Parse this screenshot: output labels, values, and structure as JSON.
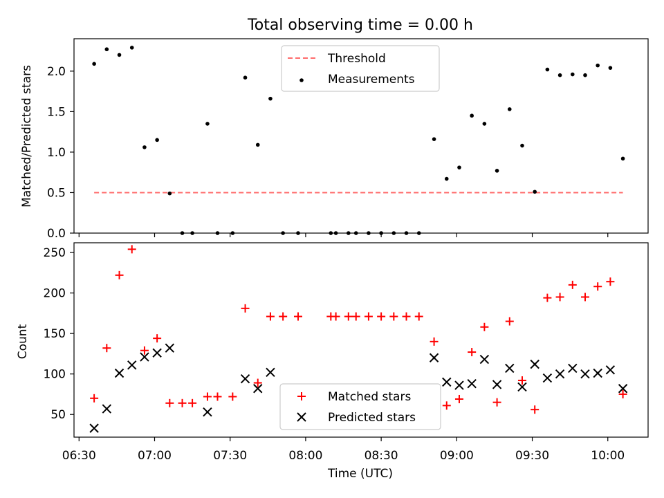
{
  "figure_title": "Total observing time = 0.00 h",
  "colors": {
    "threshold": "#ff6b6b",
    "measurements": "#000000",
    "matched": "#ff0000",
    "predicted": "#000000"
  },
  "chart_data": [
    {
      "type": "scatter",
      "title": "Total observing time = 0.00 h",
      "xlabel": "",
      "ylabel": "Matched/Predicted stars",
      "ylim": [
        0,
        2.4
      ],
      "yticks": [
        0.0,
        0.5,
        1.0,
        1.5,
        2.0
      ],
      "ytick_labels": [
        "0.0",
        "0.5",
        "1.0",
        "1.5",
        "2.0"
      ],
      "xlim": [
        "06:28",
        "10:16"
      ],
      "legend_position": "top-center",
      "threshold": {
        "name": "Threshold",
        "value": 0.5,
        "x_range": [
          "06:36",
          "10:06"
        ],
        "style": "dashed"
      },
      "series": [
        {
          "name": "Measurements",
          "x": [
            "06:36",
            "06:41",
            "06:46",
            "06:51",
            "06:56",
            "07:01",
            "07:06",
            "07:11",
            "07:15",
            "07:21",
            "07:25",
            "07:31",
            "07:36",
            "07:41",
            "07:46",
            "07:51",
            "07:57",
            "08:10",
            "08:12",
            "08:17",
            "08:20",
            "08:25",
            "08:30",
            "08:35",
            "08:40",
            "08:45",
            "08:51",
            "08:56",
            "09:01",
            "09:06",
            "09:11",
            "09:16",
            "09:21",
            "09:26",
            "09:31",
            "09:36",
            "09:41",
            "09:46",
            "09:51",
            "09:56",
            "10:01",
            "10:06"
          ],
          "y": [
            2.09,
            2.27,
            2.2,
            2.29,
            1.06,
            1.15,
            0.49,
            0.0,
            0.0,
            1.35,
            0.0,
            0.0,
            1.92,
            1.09,
            1.66,
            0.0,
            0.0,
            0.0,
            0.0,
            0.0,
            0.0,
            0.0,
            0.0,
            0.0,
            0.0,
            0.0,
            1.16,
            0.67,
            0.81,
            1.45,
            1.35,
            0.77,
            1.53,
            1.08,
            0.51,
            2.02,
            1.95,
            1.96,
            1.95,
            2.07,
            2.04,
            0.92
          ]
        }
      ]
    },
    {
      "type": "scatter",
      "title": "",
      "xlabel": "Time (UTC)",
      "ylabel": "Count",
      "ylim": [
        22,
        262
      ],
      "yticks": [
        50,
        100,
        150,
        200,
        250
      ],
      "xlim": [
        "06:28",
        "10:16"
      ],
      "xticks": [
        "06:30",
        "07:00",
        "07:30",
        "08:00",
        "08:30",
        "09:00",
        "09:30",
        "10:00"
      ],
      "legend_position": "bottom-center",
      "series": [
        {
          "name": "Matched stars",
          "marker": "plus",
          "x": [
            "06:36",
            "06:41",
            "06:46",
            "06:51",
            "06:56",
            "07:01",
            "07:06",
            "07:11",
            "07:15",
            "07:21",
            "07:25",
            "07:31",
            "07:36",
            "07:41",
            "07:46",
            "07:51",
            "07:57",
            "08:10",
            "08:12",
            "08:17",
            "08:20",
            "08:25",
            "08:30",
            "08:35",
            "08:40",
            "08:45",
            "08:51",
            "08:56",
            "09:01",
            "09:06",
            "09:11",
            "09:16",
            "09:21",
            "09:26",
            "09:31",
            "09:36",
            "09:41",
            "09:46",
            "09:51",
            "09:56",
            "10:01",
            "10:06"
          ],
          "y": [
            70,
            132,
            222,
            254,
            129,
            144,
            64,
            64,
            64,
            72,
            72,
            72,
            181,
            89,
            171,
            171,
            171,
            171,
            171,
            171,
            171,
            171,
            171,
            171,
            171,
            171,
            140,
            61,
            69,
            127,
            158,
            65,
            165,
            92,
            56,
            194,
            195,
            210,
            195,
            208,
            214,
            75
          ]
        },
        {
          "name": "Predicted stars",
          "marker": "x",
          "x": [
            "06:36",
            "06:41",
            "06:46",
            "06:51",
            "06:56",
            "07:01",
            "07:06",
            "07:21",
            "07:36",
            "07:41",
            "07:46",
            "08:51",
            "08:56",
            "09:01",
            "09:06",
            "09:11",
            "09:16",
            "09:21",
            "09:26",
            "09:31",
            "09:36",
            "09:41",
            "09:46",
            "09:51",
            "09:56",
            "10:01",
            "10:06"
          ],
          "y": [
            33,
            57,
            101,
            111,
            121,
            126,
            132,
            53,
            94,
            82,
            102,
            120,
            90,
            86,
            88,
            118,
            87,
            107,
            84,
            112,
            95,
            100,
            107,
            100,
            101,
            105,
            82
          ]
        }
      ]
    }
  ]
}
